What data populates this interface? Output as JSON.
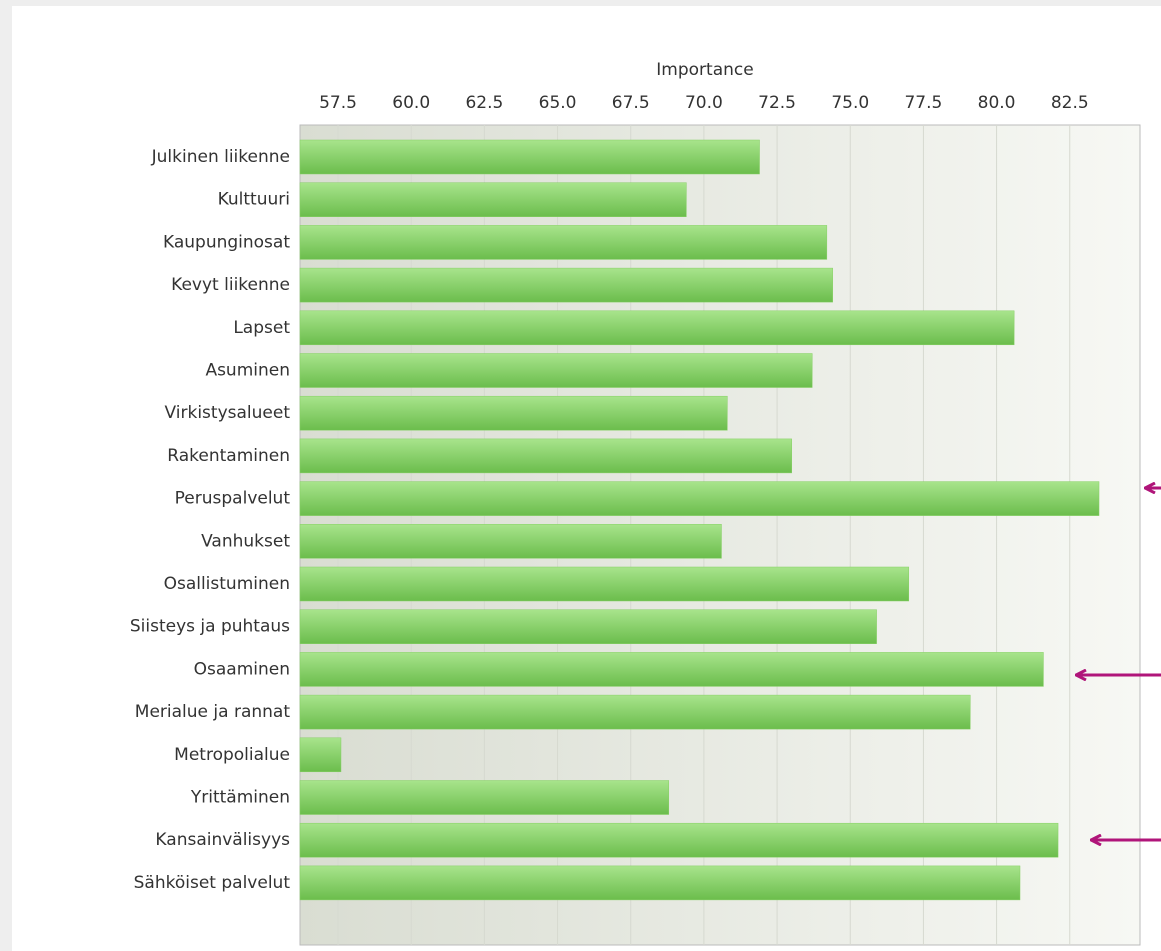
{
  "chart_data": {
    "type": "bar",
    "orientation": "horizontal",
    "x_label": "Importance",
    "categories": [
      "Julkinen liikenne",
      "Kulttuuri",
      "Kaupunginosat",
      "Kevyt liikenne",
      "Lapset",
      "Asuminen",
      "Virkistysalueet",
      "Rakentaminen",
      "Peruspalvelut",
      "Vanhukset",
      "Osallistuminen",
      "Siisteys ja puhtaus",
      "Osaaminen",
      "Merialue ja rannat",
      "Metropolialue",
      "Yrittäminen",
      "Kansainvälisyys",
      "Sähköiset palvelut"
    ],
    "values": [
      71.9,
      69.4,
      74.2,
      74.4,
      80.6,
      73.7,
      70.8,
      73.0,
      83.5,
      70.6,
      77.0,
      75.9,
      81.6,
      79.1,
      57.6,
      68.8,
      82.1,
      80.8
    ],
    "color": "#86d064",
    "xlim": [
      56.2,
      84.9
    ],
    "xticks": [
      57.5,
      {
        "value": 60,
        "label": "60.0"
      },
      62.5,
      {
        "value": 65,
        "label": "65.0"
      },
      67.5,
      {
        "value": 70,
        "label": "70.0"
      },
      72.5,
      {
        "value": 75,
        "label": "75.0"
      },
      77.5,
      {
        "value": 80,
        "label": "80.0"
      },
      82.5
    ],
    "grid": true
  }
}
